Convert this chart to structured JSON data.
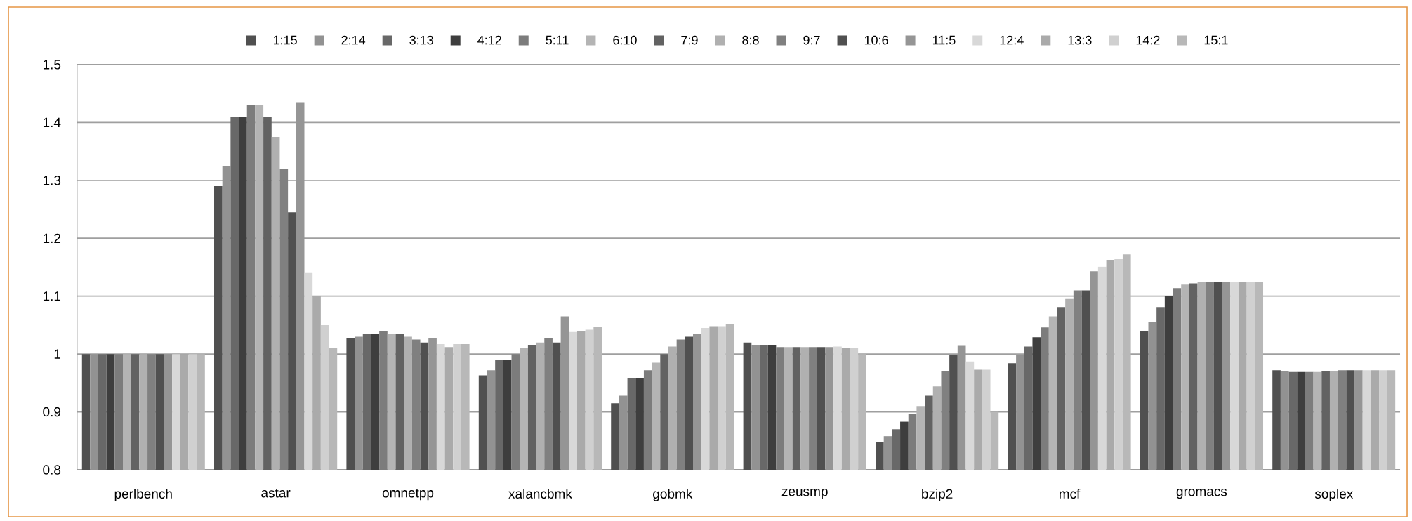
{
  "chart_data": {
    "type": "bar",
    "categories": [
      "perlbench",
      "astar",
      "omnetpp",
      "xalancbmk",
      "gobmk",
      "zeusmp",
      "bzip2",
      "mcf",
      "gromacs",
      "soplex"
    ],
    "series": [
      {
        "name": "1:15",
        "color": "#505050",
        "values": [
          1.0,
          1.29,
          1.027,
          0.963,
          0.915,
          1.02,
          0.848,
          0.984,
          1.04,
          0.972
        ]
      },
      {
        "name": "2:14",
        "color": "#929292",
        "values": [
          1.0,
          1.325,
          1.03,
          0.972,
          0.928,
          1.015,
          0.858,
          0.999,
          1.056,
          0.971
        ]
      },
      {
        "name": "3:13",
        "color": "#686868",
        "values": [
          1.0,
          1.41,
          1.035,
          0.99,
          0.958,
          1.015,
          0.87,
          1.013,
          1.081,
          0.969
        ]
      },
      {
        "name": "4:12",
        "color": "#3e3e3e",
        "values": [
          1.0,
          1.41,
          1.035,
          0.99,
          0.958,
          1.015,
          0.883,
          1.029,
          1.1,
          0.969
        ]
      },
      {
        "name": "5:11",
        "color": "#7c7c7c",
        "values": [
          1.0,
          1.43,
          1.04,
          1.0,
          0.972,
          1.012,
          0.897,
          1.046,
          1.114,
          0.969
        ]
      },
      {
        "name": "6:10",
        "color": "#b4b4b4",
        "values": [
          1.0,
          1.43,
          1.035,
          1.01,
          0.985,
          1.012,
          0.91,
          1.065,
          1.12,
          0.969
        ]
      },
      {
        "name": "7:9",
        "color": "#626262",
        "values": [
          1.0,
          1.41,
          1.035,
          1.015,
          1.0,
          1.012,
          0.928,
          1.081,
          1.122,
          0.971
        ]
      },
      {
        "name": "8:8",
        "color": "#b0b0b0",
        "values": [
          1.0,
          1.375,
          1.03,
          1.02,
          1.013,
          1.012,
          0.944,
          1.095,
          1.124,
          0.971
        ]
      },
      {
        "name": "9:7",
        "color": "#808080",
        "values": [
          1.0,
          1.32,
          1.025,
          1.027,
          1.025,
          1.012,
          0.97,
          1.11,
          1.124,
          0.972
        ]
      },
      {
        "name": "10:6",
        "color": "#505050",
        "values": [
          1.0,
          1.245,
          1.02,
          1.02,
          1.03,
          1.012,
          0.998,
          1.11,
          1.124,
          0.972
        ]
      },
      {
        "name": "11:5",
        "color": "#959595",
        "values": [
          1.0,
          1.435,
          1.027,
          1.065,
          1.035,
          1.012,
          1.014,
          1.143,
          1.124,
          0.972
        ]
      },
      {
        "name": "12:4",
        "color": "#d8d8d8",
        "values": [
          1.0,
          1.14,
          1.017,
          1.038,
          1.045,
          1.013,
          0.987,
          1.151,
          1.124,
          0.972
        ]
      },
      {
        "name": "13:3",
        "color": "#aaaaaa",
        "values": [
          1.0,
          1.1,
          1.012,
          1.04,
          1.048,
          1.01,
          0.973,
          1.162,
          1.124,
          0.972
        ]
      },
      {
        "name": "14:2",
        "color": "#d0d0d0",
        "values": [
          1.0,
          1.05,
          1.017,
          1.042,
          1.048,
          1.01,
          0.973,
          1.164,
          1.124,
          0.972
        ]
      },
      {
        "name": "15:1",
        "color": "#b8b8b8",
        "values": [
          1.0,
          1.01,
          1.017,
          1.047,
          1.052,
          1.0,
          0.9,
          1.172,
          1.124,
          0.972
        ]
      }
    ],
    "ylim": [
      0.8,
      1.5
    ],
    "yticks": [
      0.8,
      0.9,
      1,
      1.1,
      1.2,
      1.3,
      1.4,
      1.5
    ],
    "grid": "y",
    "legend": "top"
  }
}
